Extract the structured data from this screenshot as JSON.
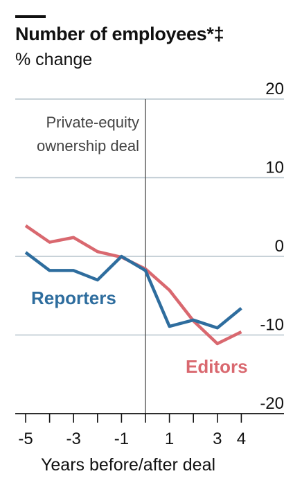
{
  "chart_data": {
    "type": "line",
    "title": "Number of employees*‡",
    "subtitle": "% change",
    "xlabel": "Years before/after deal",
    "ylabel": "",
    "xlim": [
      -5,
      4
    ],
    "ylim": [
      -20,
      20
    ],
    "x_ticks": [
      "-5",
      "-3",
      "-1",
      "1",
      "3",
      "4"
    ],
    "y_ticks": [
      "20",
      "10",
      "0",
      "-10",
      "-20"
    ],
    "grid": "horizontal",
    "annotation": {
      "line1": "Private-equity",
      "line2": "ownership deal",
      "x": 0
    },
    "x": [
      -5,
      -4,
      -3,
      -2,
      -1,
      0,
      1,
      2,
      3,
      4
    ],
    "series": [
      {
        "name": "Reporters",
        "color": "#2e6d9e",
        "values": [
          0.5,
          -1.8,
          -1.8,
          -3.0,
          0,
          -1.8,
          -8.9,
          -8.1,
          -9.1,
          -6.6
        ]
      },
      {
        "name": "Editors",
        "color": "#d9686f",
        "values": [
          3.9,
          1.8,
          2.4,
          0.6,
          -0.1,
          -1.6,
          -4.3,
          -8.2,
          -11.1,
          -9.6
        ]
      }
    ]
  }
}
